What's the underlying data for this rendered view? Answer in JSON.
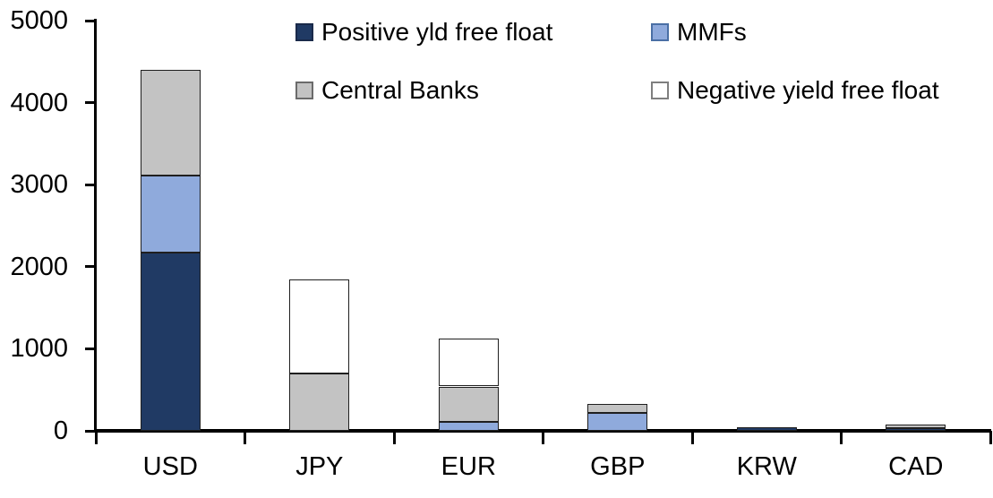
{
  "chart_data": {
    "type": "bar",
    "stacked": true,
    "title": "",
    "categories": [
      "USD",
      "JPY",
      "EUR",
      "GBP",
      "KRW",
      "CAD"
    ],
    "series": [
      {
        "name": "Positive yld free float",
        "color": "#203A64",
        "border": "#1a2a4a",
        "values": [
          2170,
          0,
          0,
          0,
          45,
          35
        ]
      },
      {
        "name": "MMFs",
        "color": "#8FAADC",
        "border": "#4A6FA5",
        "values": [
          940,
          0,
          110,
          220,
          0,
          0
        ]
      },
      {
        "name": "Central Banks",
        "color": "#C3C3C3",
        "border": "#6b6b6b",
        "values": [
          1290,
          700,
          430,
          110,
          0,
          40
        ]
      },
      {
        "name": "Negative yield free float",
        "color": "#FFFFFF",
        "border": "#7f7f7f",
        "values": [
          0,
          1150,
          580,
          0,
          0,
          0
        ]
      }
    ],
    "totals": [
      4400,
      1850,
      1120,
      330,
      45,
      75
    ],
    "ylim": [
      0,
      5000
    ],
    "yticks": [
      0,
      1000,
      2000,
      3000,
      4000,
      5000
    ],
    "xlabel": "",
    "ylabel": "",
    "grid": false,
    "legend_position": "top-inside-two-columns",
    "axis_color": "#000000",
    "text_color": "#000000"
  },
  "axes": {
    "y_tick_labels": [
      "0",
      "1000",
      "2000",
      "3000",
      "4000",
      "5000"
    ]
  }
}
